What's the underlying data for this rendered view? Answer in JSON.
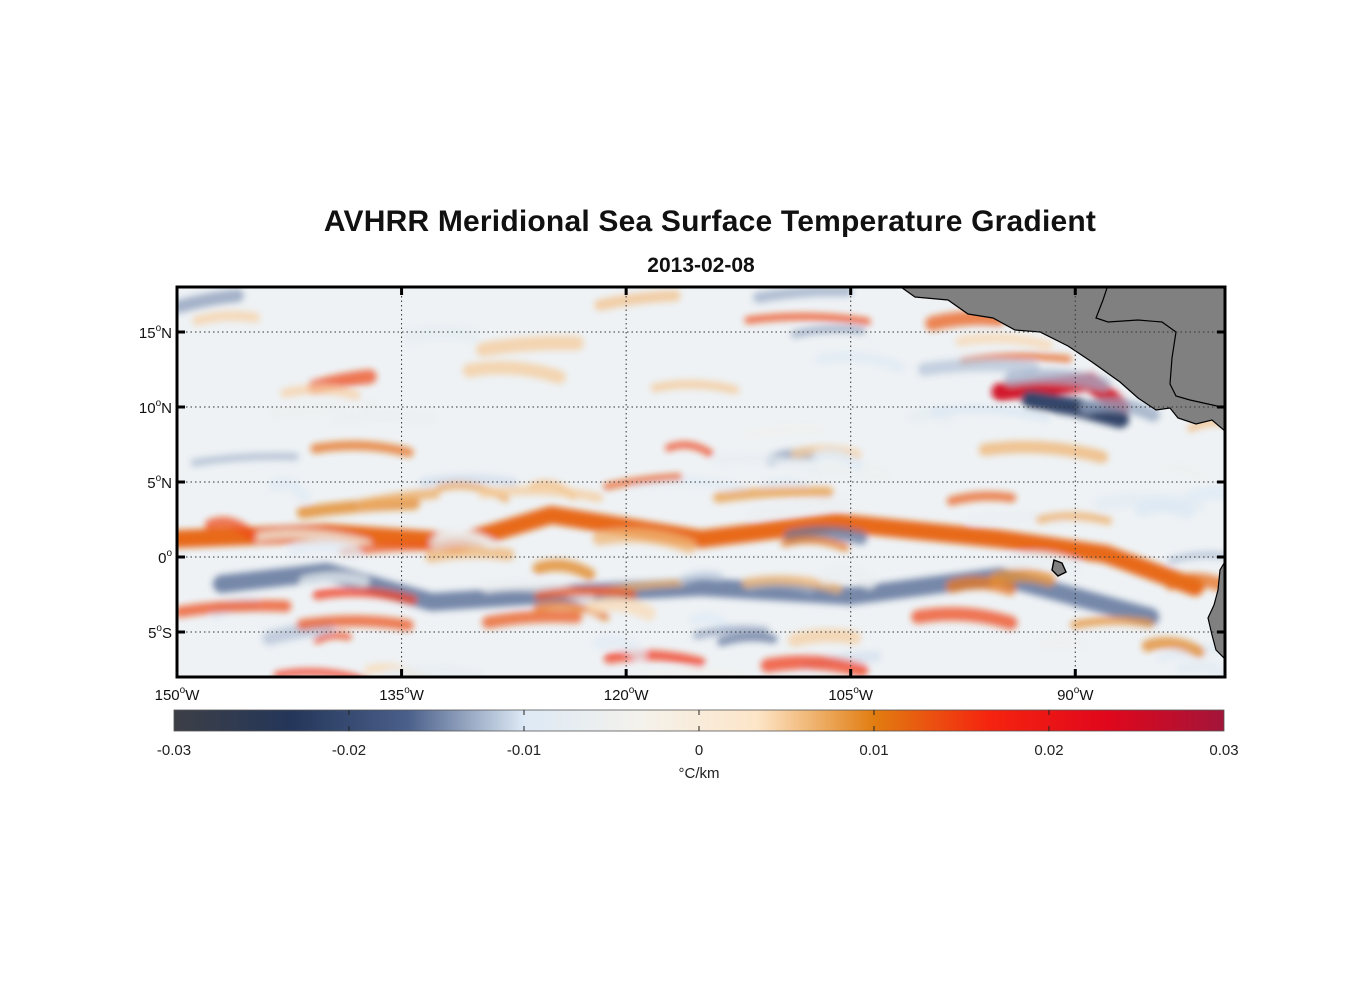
{
  "chart_data": {
    "type": "heatmap",
    "title": "AVHRR Meridional Sea Surface Temperature Gradient",
    "subtitle": "2013-02-08",
    "map": {
      "lon_range": [
        -150,
        -80
      ],
      "lat_range": [
        -8,
        18
      ],
      "projection": "equirectangular",
      "grid": true,
      "land_color": "#808080"
    },
    "x_ticks": [
      {
        "value": -150,
        "deg": "150",
        "suffix": "W"
      },
      {
        "value": -135,
        "deg": "135",
        "suffix": "W"
      },
      {
        "value": -120,
        "deg": "120",
        "suffix": "W"
      },
      {
        "value": -105,
        "deg": "105",
        "suffix": "W"
      },
      {
        "value": -90,
        "deg": "90",
        "suffix": "W"
      }
    ],
    "y_ticks": [
      {
        "value": 15,
        "deg": "15",
        "suffix": "N"
      },
      {
        "value": 10,
        "deg": "10",
        "suffix": "N"
      },
      {
        "value": 5,
        "deg": "5",
        "suffix": "N"
      },
      {
        "value": 0,
        "deg": "0",
        "suffix": ""
      },
      {
        "value": -5,
        "deg": "5",
        "suffix": "S"
      }
    ],
    "colorbar": {
      "min": -0.03,
      "max": 0.03,
      "ticks": [
        "-0.03",
        "-0.02",
        "-0.01",
        "0",
        "0.01",
        "0.02",
        "0.03"
      ],
      "label": "°C/km",
      "colors": [
        "#3d3f46",
        "#243659",
        "#4a5f8a",
        "#dde9f5",
        "#f4f2ec",
        "#fde5c8",
        "#e17d10",
        "#f5230f",
        "#e0071c",
        "#a3153a"
      ]
    },
    "features": [
      {
        "name": "equatorial-warm-band",
        "lons": [
          -150,
          -140,
          -131,
          -125,
          -115,
          -106,
          -95,
          -88,
          -82
        ],
        "lats": [
          1.2,
          1.6,
          1.0,
          2.8,
          1.2,
          2.3,
          1.2,
          0.2,
          -2.0
        ],
        "value": 0.012
      },
      {
        "name": "south-equatorial-cold-band",
        "lons": [
          -147,
          -140,
          -133,
          -125,
          -115,
          -105,
          -95,
          -85
        ],
        "lats": [
          -1.8,
          -1.0,
          -3.0,
          -2.5,
          -2.0,
          -2.6,
          -1.3,
          -4.0
        ],
        "value": -0.015
      },
      {
        "name": "costa-rica-dome-warm-front",
        "lons": [
          -95,
          -89,
          -87
        ],
        "lats": [
          11,
          11.7,
          10.0
        ],
        "value": 0.025
      },
      {
        "name": "papagayo-cold-jet",
        "lons": [
          -93,
          -90,
          -87
        ],
        "lats": [
          10.5,
          10.0,
          9.2
        ],
        "value": -0.022
      }
    ]
  }
}
